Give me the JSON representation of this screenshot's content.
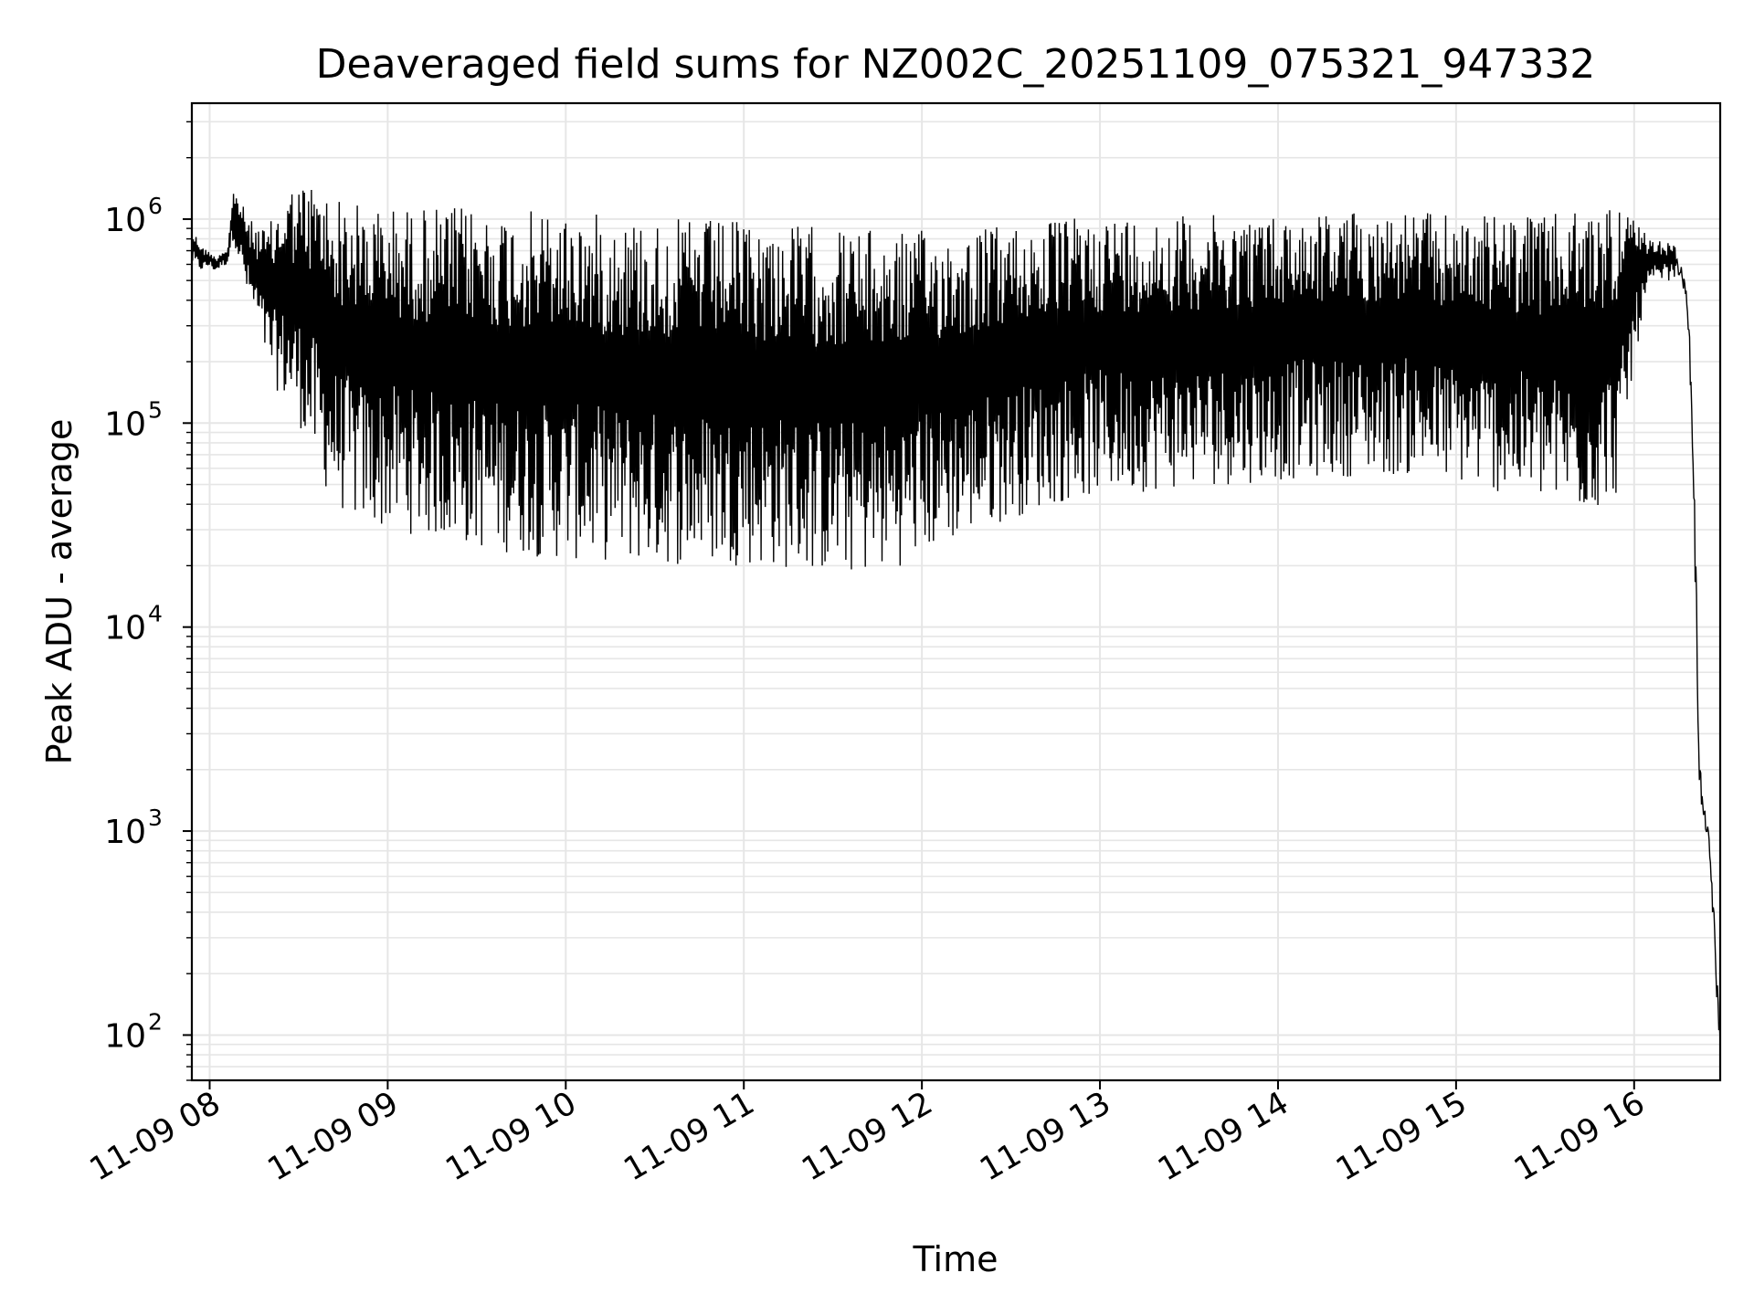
{
  "chart_data": {
    "type": "line",
    "title": "Deaveraged field sums for NZ002C_20251109_075321_947332",
    "xlabel": "Time",
    "ylabel": "Peak ADU - average",
    "yscale": "log",
    "ylim": [
      60,
      3700000
    ],
    "xlim": [
      "2025-11-09T07:54:00",
      "2025-11-09T16:29:00"
    ],
    "grid": true,
    "line_color": "#000000",
    "grid_color": "#e6e6e6",
    "x_ticks": [
      {
        "t": "2025-11-09T08:00:00",
        "label": "11-09 08"
      },
      {
        "t": "2025-11-09T09:00:00",
        "label": "11-09 09"
      },
      {
        "t": "2025-11-09T10:00:00",
        "label": "11-09 10"
      },
      {
        "t": "2025-11-09T11:00:00",
        "label": "11-09 11"
      },
      {
        "t": "2025-11-09T12:00:00",
        "label": "11-09 12"
      },
      {
        "t": "2025-11-09T13:00:00",
        "label": "11-09 13"
      },
      {
        "t": "2025-11-09T14:00:00",
        "label": "11-09 14"
      },
      {
        "t": "2025-11-09T15:00:00",
        "label": "11-09 15"
      },
      {
        "t": "2025-11-09T16:00:00",
        "label": "11-09 16"
      }
    ],
    "y_ticks": [
      {
        "value": 100,
        "base": "10",
        "exp": "2"
      },
      {
        "value": 1000,
        "base": "10",
        "exp": "3"
      },
      {
        "value": 10000,
        "base": "10",
        "exp": "4"
      },
      {
        "value": 100000,
        "base": "10",
        "exp": "5"
      },
      {
        "value": 1000000,
        "base": "10",
        "exp": "6"
      }
    ],
    "series": [
      {
        "x": [
          "2025-11-09T07:54:00",
          "2025-11-09T07:56:00",
          "2025-11-09T07:58:00",
          "2025-11-09T08:00:00",
          "2025-11-09T08:02:00",
          "2025-11-09T08:04:00",
          "2025-11-09T08:06:00",
          "2025-11-09T08:08:00",
          "2025-11-09T08:10:00",
          "2025-11-09T08:13:00",
          "2025-11-09T08:16:00",
          "2025-11-09T08:19:00",
          "2025-11-09T08:22:00",
          "2025-11-09T08:26:00",
          "2025-11-09T08:30:00",
          "2025-11-09T08:34:00",
          "2025-11-09T08:38:00",
          "2025-11-09T08:42:00",
          "2025-11-09T08:46:00",
          "2025-11-09T08:50:00",
          "2025-11-09T08:55:00",
          "2025-11-09T09:00:00",
          "2025-11-09T09:10:00",
          "2025-11-09T09:20:00",
          "2025-11-09T09:30:00",
          "2025-11-09T09:40:00",
          "2025-11-09T09:50:00",
          "2025-11-09T10:00:00",
          "2025-11-09T10:15:00",
          "2025-11-09T10:30:00",
          "2025-11-09T10:45:00",
          "2025-11-09T11:00:00",
          "2025-11-09T11:15:00",
          "2025-11-09T11:30:00",
          "2025-11-09T11:45:00",
          "2025-11-09T12:00:00",
          "2025-11-09T12:15:00",
          "2025-11-09T12:30:00",
          "2025-11-09T12:45:00",
          "2025-11-09T13:00:00",
          "2025-11-09T13:15:00",
          "2025-11-09T13:30:00",
          "2025-11-09T13:45:00",
          "2025-11-09T14:00:00",
          "2025-11-09T14:15:00",
          "2025-11-09T14:30:00",
          "2025-11-09T14:45:00",
          "2025-11-09T15:00:00",
          "2025-11-09T15:15:00",
          "2025-11-09T15:30:00",
          "2025-11-09T15:45:00",
          "2025-11-09T15:55:00",
          "2025-11-09T16:00:00",
          "2025-11-09T16:05:00",
          "2025-11-09T16:10:00",
          "2025-11-09T16:14:00",
          "2025-11-09T16:16:00",
          "2025-11-09T16:18:00",
          "2025-11-09T16:19:00",
          "2025-11-09T16:20:00",
          "2025-11-09T16:21:00",
          "2025-11-09T16:22:00",
          "2025-11-09T16:23:00",
          "2025-11-09T16:24:00",
          "2025-11-09T16:25:00",
          "2025-11-09T16:26:00",
          "2025-11-09T16:27:00",
          "2025-11-09T16:28:00",
          "2025-11-09T16:29:00"
        ],
        "hi": [
          880000,
          820000,
          720000,
          700000,
          650000,
          700000,
          720000,
          1400000,
          1300000,
          1000000,
          950000,
          900000,
          1050000,
          1450000,
          1500000,
          1550000,
          1450000,
          1300000,
          1250000,
          1200000,
          1150000,
          1150000,
          1150000,
          1150000,
          1150000,
          1100000,
          1100000,
          1100000,
          1050000,
          1000000,
          1000000,
          980000,
          950000,
          920000,
          880000,
          880000,
          900000,
          950000,
          1000000,
          1050000,
          1050000,
          1050000,
          1050000,
          1050000,
          1100000,
          1100000,
          1100000,
          1050000,
          1050000,
          1050000,
          1100000,
          1300000,
          1000000,
          800000,
          780000,
          750000,
          650000,
          500000,
          300000,
          120000,
          35000,
          4000,
          1700,
          1400,
          1200,
          900,
          500,
          250,
          130
        ],
        "lo": [
          600000,
          550000,
          560000,
          580000,
          550000,
          580000,
          600000,
          800000,
          600000,
          400000,
          300000,
          200000,
          150000,
          120000,
          100000,
          70000,
          50000,
          40000,
          35000,
          32000,
          30000,
          30000,
          28000,
          26000,
          24000,
          23000,
          22000,
          21000,
          21000,
          20000,
          20000,
          20000,
          19000,
          18000,
          18000,
          22000,
          28000,
          34000,
          40000,
          44000,
          46000,
          48000,
          50000,
          52000,
          54000,
          55000,
          55000,
          50000,
          45000,
          40000,
          35000,
          45000,
          200000,
          450000,
          500000,
          500000,
          450000,
          300000,
          100000,
          30000,
          3000,
          1100,
          1000,
          900,
          700,
          400,
          200,
          100,
          70
        ]
      }
    ]
  }
}
